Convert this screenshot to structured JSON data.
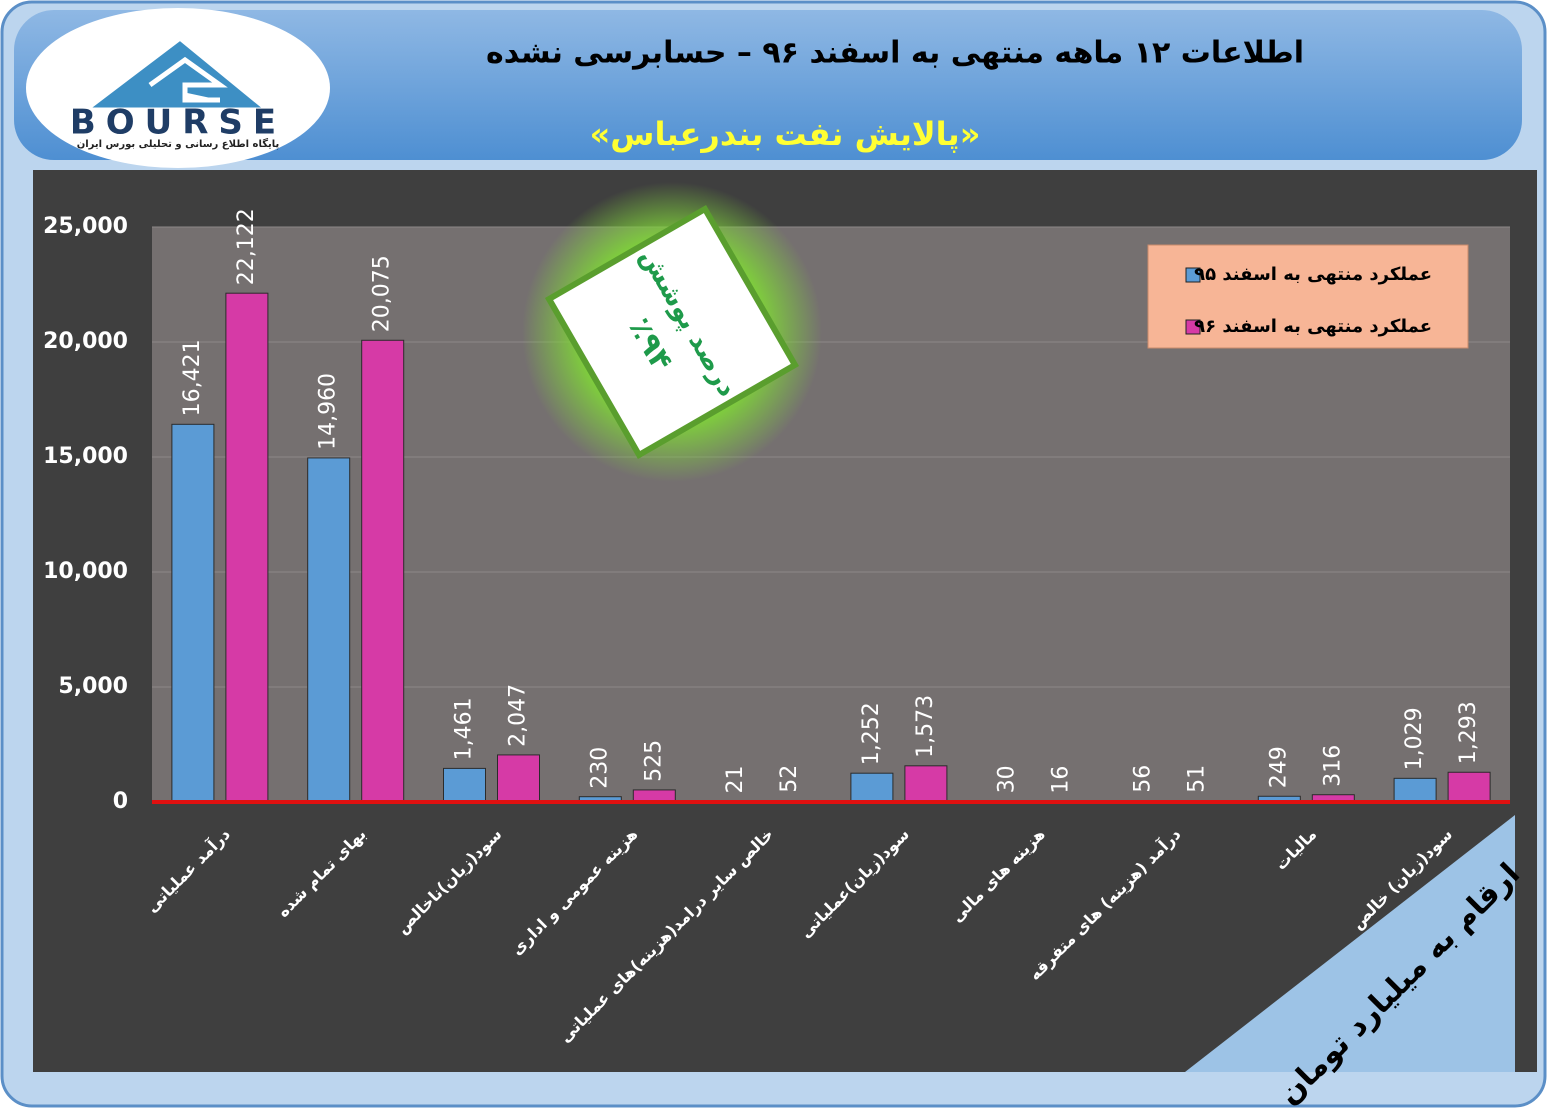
{
  "header": {
    "logo": "BOURSE",
    "logo_subtitle": "پایگاه اطلاع رسانی و تحلیلی بورس ایران"
  },
  "chart_data": {
    "type": "bar",
    "title": "اطلاعات ۱۲ ماهه منتهی به اسفند ۹۶ – حسابرسی نشده",
    "subtitle": "«پالایش نفت بندرعباس»",
    "annotations": [
      "درصد پوشش",
      "٪۹۴",
      "ارقام به میلیارد تومان"
    ],
    "categories": [
      "درآمد عملیاتی",
      "بهای تمام شده",
      "سود(زیان)ناخالص",
      "هزینه عمومی و اداری",
      "خالص سایر درامد(هزینه)های عملیاتی",
      "سود(زیان)عملیاتی",
      "هزینه های مالی",
      "درآمد (هزینه) های متفرقه",
      "مالیات",
      "سود(زیان) خالص"
    ],
    "series": [
      {
        "name": "عملکرد منتهی به اسفند ۹۵",
        "color": "#5b9bd5",
        "values": [
          16421,
          14960,
          1461,
          230,
          21,
          1252,
          30,
          56,
          249,
          1029
        ],
        "value_labels": [
          "16,421",
          "14,960",
          "1,461",
          "230",
          "21",
          "1,252",
          "30",
          "56",
          "249",
          "1,029"
        ]
      },
      {
        "name": "عملکرد منتهی به اسفند ۹۶",
        "color": "#d63aa6",
        "values": [
          22122,
          20075,
          2047,
          525,
          52,
          1573,
          16,
          51,
          316,
          1293
        ],
        "value_labels": [
          "22,122",
          "20,075",
          "2,047",
          "525",
          "52",
          "1,573",
          "16",
          "51",
          "316",
          "1,293"
        ]
      }
    ],
    "ylim": [
      0,
      25000
    ],
    "yticks": [
      0,
      {
        "value": 5000,
        "label": "5,000"
      },
      {
        "value": 10000,
        "label": "10,000"
      },
      {
        "value": 15000,
        "label": "15,000"
      },
      {
        "value": 20000,
        "label": "20,000"
      },
      {
        "value": 25000,
        "label": "25,000"
      }
    ],
    "grid": true,
    "legend": "top-right"
  }
}
